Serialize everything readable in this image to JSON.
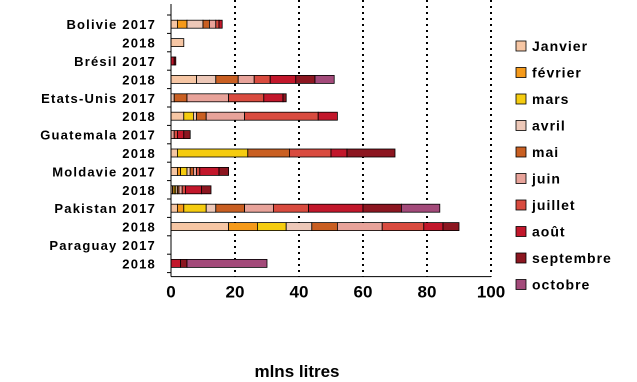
{
  "chart_data": {
    "type": "bar",
    "orientation": "horizontal",
    "stacked": true,
    "title": "",
    "xlabel": "mlns litres",
    "ylabel": "",
    "xlim": [
      0,
      100
    ],
    "x_ticks": [
      0,
      20,
      40,
      60,
      80,
      100
    ],
    "grid": "vertical dotted",
    "legend_position": "right",
    "categories": [
      "Bolivie 2017",
      "2018",
      "Brésil 2017",
      "2018",
      "Etats-Unis 2017",
      "2018",
      "Guatemala 2017",
      "2018",
      "Moldavie 2017",
      "2018",
      "Pakistan 2017",
      "2018",
      "Paraguay 2017",
      "2018"
    ],
    "series": [
      {
        "name": "Janvier",
        "color": "#F6C6A4",
        "values": [
          2,
          4,
          0,
          8,
          0,
          4,
          0,
          2,
          2,
          0.5,
          2,
          18,
          0,
          0
        ]
      },
      {
        "name": "février",
        "color": "#F59A1A",
        "values": [
          3,
          0,
          0,
          0,
          0,
          0,
          0,
          0,
          1,
          0.5,
          2,
          9,
          0,
          0
        ]
      },
      {
        "name": "mars",
        "color": "#F5CC10",
        "values": [
          0,
          0,
          0,
          0,
          0,
          3,
          0,
          22,
          2,
          0.5,
          7,
          9,
          0,
          0
        ]
      },
      {
        "name": "avril",
        "color": "#EDC8B8",
        "values": [
          5,
          0,
          0,
          6,
          1,
          1,
          0,
          0,
          1,
          0.5,
          3,
          8,
          0,
          0
        ]
      },
      {
        "name": "mai",
        "color": "#C95F22",
        "values": [
          2,
          0,
          0,
          7,
          4,
          3,
          0,
          13,
          1,
          0.5,
          9,
          8,
          0,
          0
        ]
      },
      {
        "name": "juin",
        "color": "#E8A39A",
        "values": [
          2,
          0,
          0,
          5,
          13,
          12,
          1,
          0,
          1,
          1,
          9,
          14,
          0,
          0
        ]
      },
      {
        "name": "juillet",
        "color": "#D94B3F",
        "values": [
          1,
          0,
          0,
          5,
          11,
          23,
          1,
          13,
          1,
          1,
          11,
          13,
          0,
          0
        ]
      },
      {
        "name": " août",
        "color": "#C2172B",
        "values": [
          1,
          0,
          1,
          8,
          6,
          6,
          2,
          5,
          6,
          5,
          17,
          6,
          0,
          3
        ]
      },
      {
        "name": "septembre",
        "color": "#8C1620",
        "values": [
          0,
          0,
          0.5,
          6,
          1,
          0,
          2,
          15,
          3,
          3,
          12,
          5,
          0,
          2
        ]
      },
      {
        "name": "octobre",
        "color": "#A34A7A",
        "values": [
          0,
          0,
          0,
          6,
          0,
          0,
          0,
          0,
          0,
          0,
          12,
          0,
          0,
          25
        ]
      }
    ]
  }
}
